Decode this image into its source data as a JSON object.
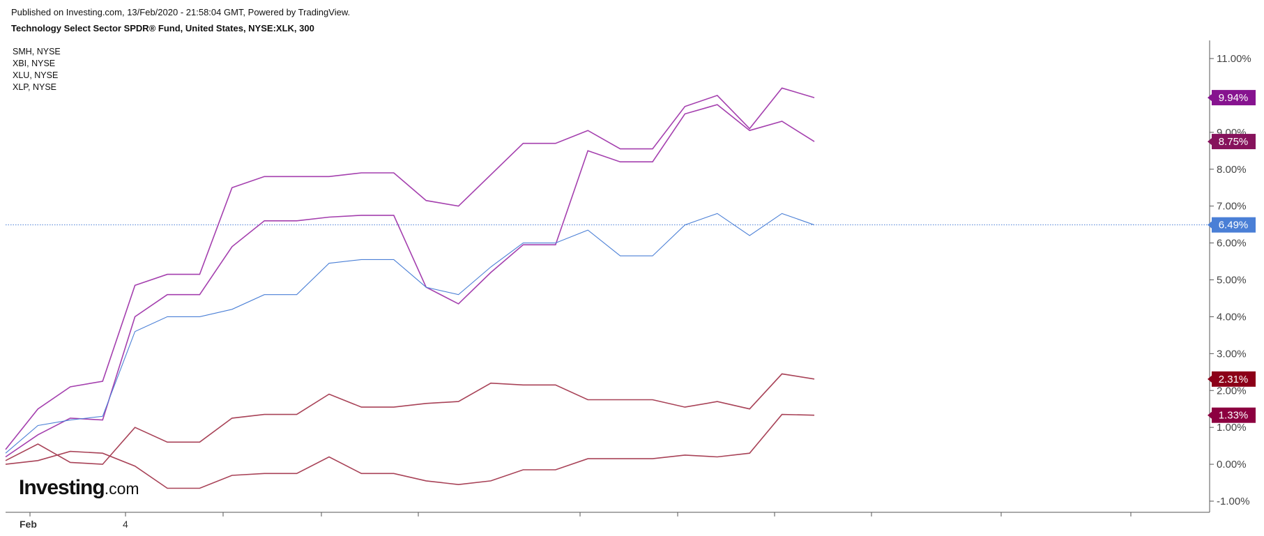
{
  "header": {
    "published": "Published on Investing.com, 13/Feb/2020 - 21:58:04 GMT, Powered by TradingView.",
    "title": "Technology Select Sector SPDR® Fund, United States, NYSE:XLK, 300"
  },
  "legend": [
    "SMH, NYSE",
    "XBI, NYSE",
    "XLU, NYSE",
    "XLP, NYSE"
  ],
  "logo": {
    "brand": "Investing",
    "domain": ".com"
  },
  "chart_data": {
    "type": "line",
    "title": "Technology Select Sector SPDR® Fund, United States, NYSE:XLK, 300",
    "x_tick_labels": [
      "Feb",
      "4"
    ],
    "y_ticks": [
      "11.00%",
      "10.00%",
      "9.00%",
      "8.00%",
      "7.00%",
      "6.00%",
      "5.00%",
      "4.00%",
      "3.00%",
      "2.00%",
      "1.00%",
      "0.00%",
      "-1.00%"
    ],
    "ylim": [
      -1.3,
      11.5
    ],
    "x_index_range": [
      -0.7,
      36.4
    ],
    "grid": false,
    "legend_position": "top-left",
    "reference_line": {
      "value": 6.49,
      "color": "#4a7fd6"
    },
    "series": [
      {
        "color": "#a43fae",
        "label": "9.94%",
        "label_bg": "#86138f",
        "values": [
          0.4,
          1.5,
          2.1,
          2.25,
          4.85,
          5.15,
          5.15,
          7.5,
          7.8,
          7.8,
          7.8,
          7.9,
          7.9,
          7.15,
          7.0,
          7.85,
          8.7,
          8.7,
          9.05,
          8.55,
          8.55,
          9.7,
          10.0,
          9.1,
          10.2,
          9.94
        ]
      },
      {
        "color": "#a43fae",
        "label": "8.75%",
        "label_bg": "#86135c",
        "values": [
          0.2,
          0.8,
          1.25,
          1.2,
          4.0,
          4.6,
          4.6,
          5.9,
          6.6,
          6.6,
          6.7,
          6.75,
          6.75,
          4.8,
          4.35,
          5.2,
          5.95,
          5.95,
          8.5,
          8.2,
          8.2,
          9.5,
          9.75,
          9.05,
          9.3,
          8.75
        ]
      },
      {
        "color": "#4a7fd6",
        "label": "6.49%",
        "label_bg": "#4a7fd6",
        "values": [
          0.3,
          1.05,
          1.2,
          1.3,
          3.6,
          4.0,
          4.0,
          4.2,
          4.6,
          4.6,
          5.45,
          5.55,
          5.55,
          4.8,
          4.6,
          5.35,
          6.0,
          6.0,
          6.35,
          5.65,
          5.65,
          6.49,
          6.8,
          6.2,
          6.8,
          6.49
        ]
      },
      {
        "color": "#a84257",
        "label": "2.31%",
        "label_bg": "#8c0018",
        "values": [
          0.1,
          0.55,
          0.05,
          0.0,
          1.0,
          0.6,
          0.6,
          1.25,
          1.35,
          1.35,
          1.9,
          1.55,
          1.55,
          1.65,
          1.7,
          2.2,
          2.15,
          2.15,
          1.75,
          1.75,
          1.75,
          1.55,
          1.7,
          1.5,
          2.45,
          2.31
        ]
      },
      {
        "color": "#a84257",
        "label": "1.33%",
        "label_bg": "#8c0040",
        "values": [
          0.0,
          0.1,
          0.35,
          0.3,
          -0.05,
          -0.65,
          -0.65,
          -0.3,
          -0.25,
          -0.25,
          0.2,
          -0.25,
          -0.25,
          -0.45,
          -0.55,
          -0.45,
          -0.15,
          -0.15,
          0.15,
          0.15,
          0.15,
          0.25,
          0.2,
          0.3,
          1.35,
          1.33
        ]
      }
    ]
  }
}
